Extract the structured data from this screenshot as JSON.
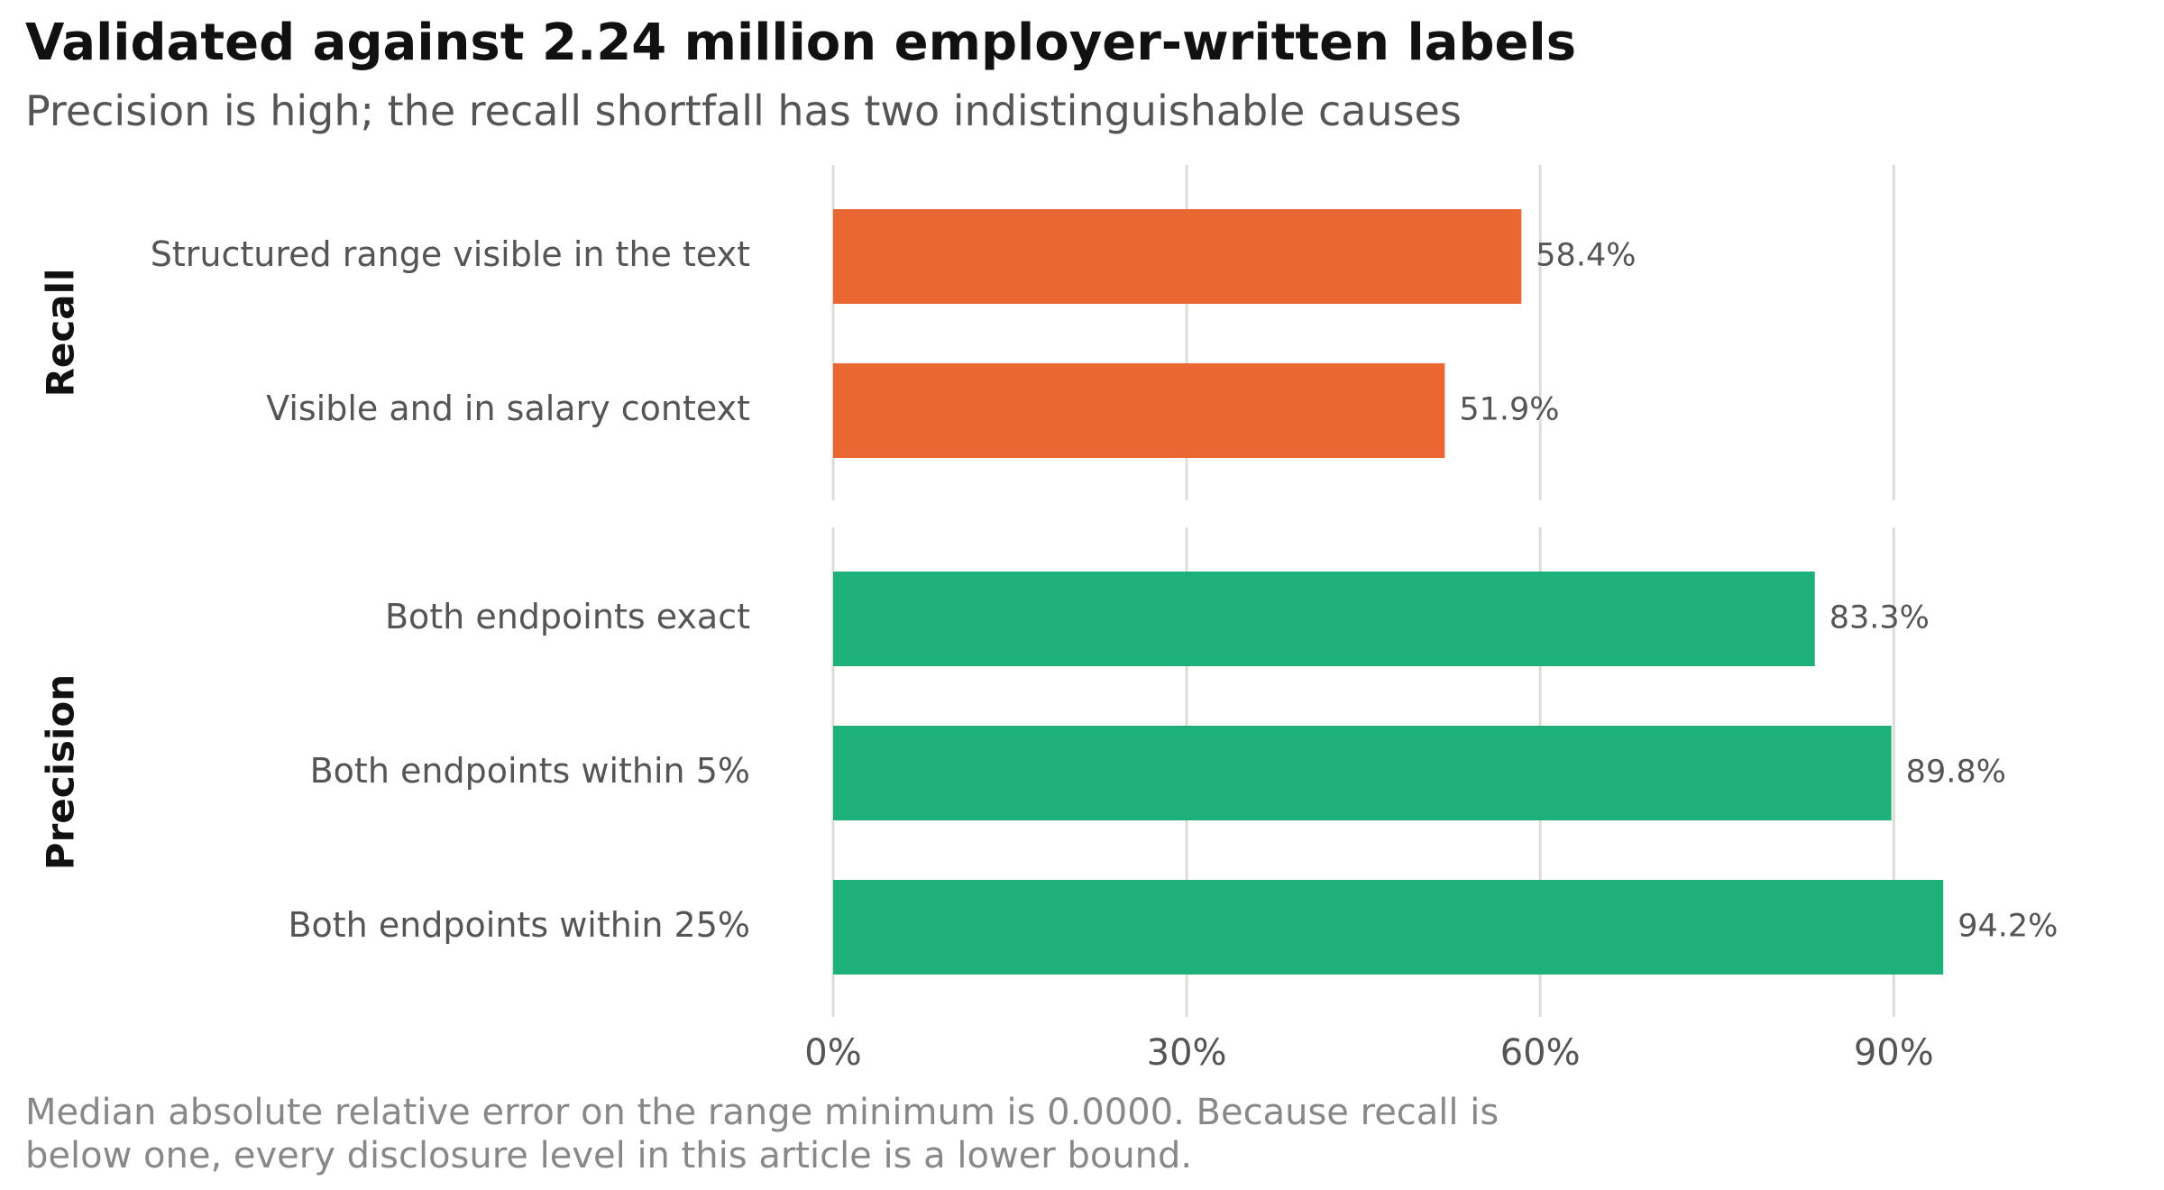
{
  "title": "Validated against 2.24 million employer-written labels",
  "subtitle": "Precision is high; the recall shortfall has two indistinguishable causes",
  "footnote": [
    "Median absolute relative error on the range minimum is 0.0000. Because recall is",
    "below one, every disclosure level in this article is a lower bound."
  ],
  "chart_data": {
    "type": "bar",
    "orientation": "horizontal",
    "xlim": [
      0,
      100
    ],
    "x_ticks": [
      0,
      30,
      60,
      90
    ],
    "x_tick_labels": [
      "0%",
      "30%",
      "60%",
      "90%"
    ],
    "grid": true,
    "panels": [
      {
        "name": "Recall",
        "color": "#EA6733",
        "categories": [
          "Structured range visible in the text",
          "Visible and in salary context"
        ],
        "values": [
          58.4,
          51.9
        ],
        "value_labels": [
          "58.4%",
          "51.9%"
        ]
      },
      {
        "name": "Precision",
        "color": "#1DB07A",
        "categories": [
          "Both endpoints exact",
          "Both endpoints within 5%",
          "Both endpoints within 25%"
        ],
        "values": [
          83.3,
          89.8,
          94.2
        ],
        "value_labels": [
          "83.3%",
          "89.8%",
          "94.2%"
        ]
      }
    ]
  }
}
